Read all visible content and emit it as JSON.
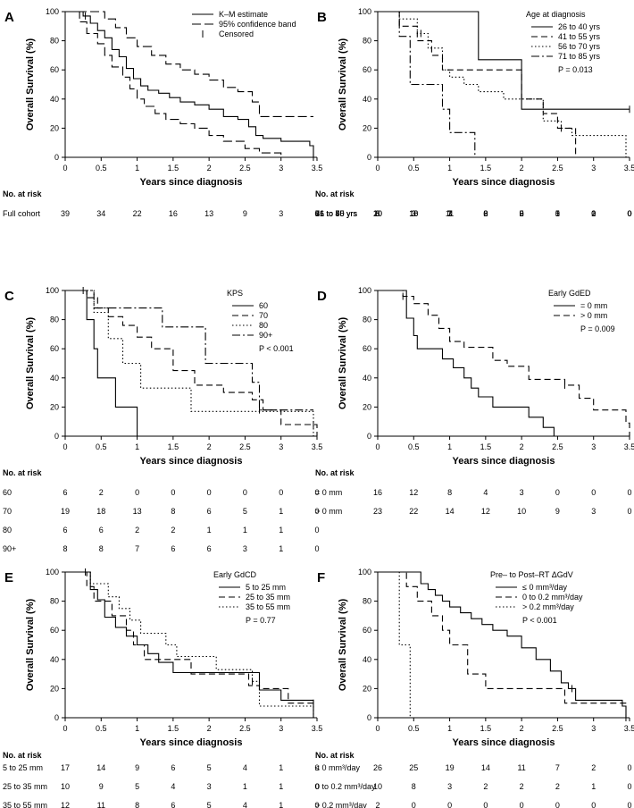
{
  "common": {
    "xlabel": "Years since diagnosis",
    "ylabel": "Overall Survival (%)",
    "x_ticks": [
      "0",
      "0.5",
      "1",
      "1.5",
      "2",
      "2.5",
      "3",
      "3.5"
    ],
    "y_ticks": [
      "0",
      "20",
      "40",
      "60",
      "80",
      "100"
    ],
    "risk_title": "No. at risk"
  },
  "chart_data": [
    {
      "panel": "A",
      "type": "line",
      "legend_title": "",
      "p_value": "",
      "xlim": [
        0,
        3.5
      ],
      "ylim": [
        0,
        100
      ],
      "legend": [
        "K–M estimate",
        "95% confidence band",
        "Censored"
      ],
      "series": [
        {
          "name": "K–M estimate",
          "style": "solid",
          "x": [
            0,
            0.25,
            0.35,
            0.45,
            0.55,
            0.65,
            0.75,
            0.85,
            0.95,
            1.05,
            1.15,
            1.3,
            1.45,
            1.6,
            1.8,
            2.0,
            2.2,
            2.4,
            2.55,
            2.65,
            2.75,
            3.0,
            3.4,
            3.45
          ],
          "y": [
            100,
            97,
            92,
            87,
            82,
            74,
            69,
            61,
            54,
            49,
            46,
            44,
            41,
            38,
            36,
            33,
            28,
            26,
            21,
            15,
            13,
            11,
            8,
            0
          ]
        },
        {
          "name": "95% confidence band upper",
          "style": "longdash",
          "x": [
            0,
            0.35,
            0.55,
            0.7,
            0.85,
            1.0,
            1.2,
            1.4,
            1.6,
            1.8,
            2.0,
            2.2,
            2.4,
            2.6,
            2.7,
            3.45
          ],
          "y": [
            100,
            100,
            95,
            89,
            82,
            76,
            70,
            64,
            60,
            57,
            53,
            48,
            45,
            38,
            28,
            28
          ]
        },
        {
          "name": "95% confidence band lower",
          "style": "longdash",
          "x": [
            0,
            0.2,
            0.3,
            0.45,
            0.55,
            0.65,
            0.8,
            0.9,
            1.0,
            1.1,
            1.25,
            1.4,
            1.6,
            1.8,
            2.0,
            2.2,
            2.5,
            2.7,
            3.0
          ],
          "y": [
            100,
            93,
            85,
            78,
            70,
            62,
            55,
            47,
            40,
            35,
            30,
            26,
            23,
            20,
            15,
            11,
            6,
            3,
            0
          ]
        }
      ],
      "censored": [
        {
          "series": 0,
          "x": [
            0.28,
            3.45
          ]
        }
      ],
      "risk": {
        "times": [
          "0",
          "0.5",
          "1",
          "1.5",
          "2",
          "2.5",
          "3",
          "3.5"
        ],
        "rows": [
          {
            "label": "Full cohort",
            "values": [
              "39",
              "34",
              "22",
              "16",
              "13",
              "9",
              "3",
              "0"
            ]
          }
        ]
      }
    },
    {
      "panel": "B",
      "type": "line",
      "legend_title": "Age at diagnosis",
      "p_value": "P = 0.013",
      "xlim": [
        0,
        3.5
      ],
      "ylim": [
        0,
        100
      ],
      "legend": [
        "26 to 40 yrs",
        "41 to 55 yrs",
        "56 to 70 yrs",
        "71 to 85 yrs"
      ],
      "series": [
        {
          "name": "26 to 40 yrs",
          "style": "solid",
          "x": [
            0,
            1.4,
            2.0,
            3.5
          ],
          "y": [
            100,
            67,
            33,
            33
          ]
        },
        {
          "name": "41 to 55 yrs",
          "style": "dash",
          "x": [
            0,
            0.3,
            0.55,
            0.75,
            0.9,
            1.0,
            1.4,
            2.0,
            2.3,
            2.5,
            2.75
          ],
          "y": [
            100,
            90,
            80,
            70,
            60,
            60,
            60,
            40,
            30,
            20,
            0
          ]
        },
        {
          "name": "56 to 70 yrs",
          "style": "dot",
          "x": [
            0,
            0.3,
            0.55,
            0.7,
            0.9,
            1.0,
            1.2,
            1.4,
            1.75,
            2.3,
            2.55,
            2.7,
            3.45
          ],
          "y": [
            100,
            95,
            85,
            75,
            60,
            55,
            50,
            45,
            40,
            25,
            20,
            15,
            0
          ]
        },
        {
          "name": "71 to 85 yrs",
          "style": "dashdot",
          "x": [
            0,
            0.3,
            0.45,
            0.7,
            0.9,
            1.0,
            1.35
          ],
          "y": [
            100,
            83,
            50,
            50,
            33,
            17,
            0
          ]
        }
      ],
      "censored": [
        {
          "series": 0,
          "x": [
            3.5
          ]
        },
        {
          "series": 2,
          "x": [
            0.6,
            2.55
          ]
        }
      ],
      "risk": {
        "times": [
          "0",
          "0.5",
          "1",
          "1.5",
          "2",
          "2.5",
          "3",
          "3.5"
        ],
        "rows": [
          {
            "label": "26 to 40 yrs",
            "values": [
              "3",
              "3",
              "3",
              "2",
              "2",
              "1",
              "1",
              "0"
            ]
          },
          {
            "label": "41 to 55 yrs",
            "values": [
              "10",
              "10",
              "7",
              "6",
              "6",
              "3",
              "0",
              "0"
            ]
          },
          {
            "label": "56 to 70 yrs",
            "values": [
              "20",
              "18",
              "11",
              "8",
              "5",
              "5",
              "2",
              "0"
            ]
          },
          {
            "label": "71 to 85 yrs",
            "values": [
              "6",
              "3",
              "1",
              "0",
              "0",
              "0",
              "0",
              "0"
            ]
          }
        ]
      }
    },
    {
      "panel": "C",
      "type": "line",
      "legend_title": "KPS",
      "p_value": "P < 0.001",
      "xlim": [
        0,
        3.5
      ],
      "ylim": [
        0,
        100
      ],
      "legend": [
        "60",
        "70",
        "80",
        "90+"
      ],
      "series": [
        {
          "name": "60",
          "style": "solid",
          "x": [
            0,
            0.3,
            0.4,
            0.45,
            0.7,
            1.0
          ],
          "y": [
            100,
            80,
            60,
            40,
            20,
            0
          ]
        },
        {
          "name": "70",
          "style": "dash",
          "x": [
            0,
            0.3,
            0.45,
            0.6,
            0.8,
            1.0,
            1.2,
            1.5,
            1.8,
            2.2,
            2.6,
            2.75,
            3.0,
            3.5
          ],
          "y": [
            100,
            95,
            88,
            82,
            76,
            68,
            60,
            45,
            35,
            30,
            25,
            18,
            8,
            0
          ]
        },
        {
          "name": "80",
          "style": "dot",
          "x": [
            0,
            0.4,
            0.6,
            0.8,
            0.9,
            1.05,
            1.6,
            1.75,
            2.6,
            3.45
          ],
          "y": [
            100,
            85,
            67,
            50,
            50,
            33,
            33,
            17,
            17,
            0
          ]
        },
        {
          "name": "90+",
          "style": "dashdot",
          "x": [
            0,
            0.4,
            0.65,
            1.35,
            1.95,
            2.6,
            2.7,
            3.45
          ],
          "y": [
            100,
            88,
            88,
            75,
            50,
            37,
            18,
            18
          ]
        }
      ],
      "censored": [
        {
          "series": 1,
          "x": [
            0.25,
            3.45
          ]
        },
        {
          "series": 3,
          "x": [
            2.7
          ]
        }
      ],
      "risk": {
        "times": [
          "0",
          "0.5",
          "1",
          "1.5",
          "2",
          "2.5",
          "3",
          "3.5"
        ],
        "rows": [
          {
            "label": "60",
            "values": [
              "6",
              "2",
              "0",
              "0",
              "0",
              "0",
              "0",
              "0"
            ]
          },
          {
            "label": "70",
            "values": [
              "19",
              "18",
              "13",
              "8",
              "6",
              "5",
              "1",
              "0"
            ]
          },
          {
            "label": "80",
            "values": [
              "6",
              "6",
              "2",
              "2",
              "1",
              "1",
              "1",
              "0"
            ]
          },
          {
            "label": "90+",
            "values": [
              "8",
              "8",
              "7",
              "6",
              "6",
              "3",
              "1",
              "0"
            ]
          }
        ]
      }
    },
    {
      "panel": "D",
      "type": "line",
      "legend_title": "Early GdED",
      "p_value": "P = 0.009",
      "xlim": [
        0,
        3.5
      ],
      "ylim": [
        0,
        100
      ],
      "legend": [
        "= 0 mm",
        "> 0 mm"
      ],
      "series": [
        {
          "name": "= 0 mm",
          "style": "solid",
          "x": [
            0,
            0.4,
            0.5,
            0.55,
            0.6,
            0.9,
            1.05,
            1.2,
            1.3,
            1.4,
            1.6,
            2.1,
            2.3,
            2.45
          ],
          "y": [
            100,
            81,
            69,
            60,
            60,
            53,
            47,
            40,
            33,
            27,
            20,
            13,
            6,
            0
          ]
        },
        {
          "name": "> 0 mm",
          "style": "dash",
          "x": [
            0,
            0.35,
            0.5,
            0.7,
            0.85,
            1.0,
            1.2,
            1.6,
            1.8,
            2.1,
            2.6,
            2.8,
            3.0,
            3.45,
            3.5
          ],
          "y": [
            100,
            96,
            91,
            83,
            74,
            65,
            61,
            52,
            48,
            39,
            35,
            26,
            18,
            9,
            0
          ]
        }
      ],
      "censored": [
        {
          "series": 1,
          "x": [
            0.35,
            2.6
          ]
        }
      ],
      "risk": {
        "times": [
          "0",
          "0.5",
          "1",
          "1.5",
          "2",
          "2.5",
          "3",
          "3.5"
        ],
        "rows": [
          {
            "label": "= 0 mm",
            "values": [
              "16",
              "12",
              "8",
              "4",
              "3",
              "0",
              "0",
              "0"
            ]
          },
          {
            "label": "> 0 mm",
            "values": [
              "23",
              "22",
              "14",
              "12",
              "10",
              "9",
              "3",
              "0"
            ]
          }
        ]
      }
    },
    {
      "panel": "E",
      "type": "line",
      "legend_title": "Early GdCD",
      "p_value": "P = 0.77",
      "xlim": [
        0,
        3.5
      ],
      "ylim": [
        0,
        100
      ],
      "legend": [
        "5 to 25 mm",
        "25 to 35 mm",
        "35 to 55 mm"
      ],
      "series": [
        {
          "name": "5 to 25 mm",
          "style": "solid",
          "x": [
            0,
            0.35,
            0.45,
            0.55,
            0.7,
            0.85,
            1.0,
            1.15,
            1.3,
            1.5,
            2.1,
            2.7,
            3.0,
            3.45
          ],
          "y": [
            100,
            88,
            81,
            69,
            62,
            56,
            50,
            44,
            38,
            31,
            31,
            19,
            12,
            0
          ]
        },
        {
          "name": "25 to 35 mm",
          "style": "dash",
          "x": [
            0,
            0.3,
            0.4,
            0.55,
            0.65,
            0.85,
            0.95,
            1.1,
            1.5,
            1.75,
            2.1,
            2.55,
            2.7,
            3.1,
            3.5
          ],
          "y": [
            100,
            90,
            80,
            80,
            70,
            60,
            50,
            40,
            40,
            30,
            30,
            22,
            20,
            10,
            10
          ]
        },
        {
          "name": "35 to 55 mm",
          "style": "dot",
          "x": [
            0,
            0.35,
            0.6,
            0.75,
            0.9,
            1.05,
            1.4,
            1.55,
            2.1,
            2.6,
            2.7,
            3.45
          ],
          "y": [
            100,
            92,
            83,
            75,
            67,
            58,
            50,
            42,
            33,
            25,
            8,
            0
          ]
        }
      ],
      "censored": [
        {
          "series": 0,
          "x": [
            0.28
          ]
        },
        {
          "series": 2,
          "x": [
            2.6
          ]
        },
        {
          "series": 1,
          "x": [
            3.45
          ]
        }
      ],
      "risk": {
        "times": [
          "0",
          "0.5",
          "1",
          "1.5",
          "2",
          "2.5",
          "3",
          "3.5"
        ],
        "rows": [
          {
            "label": "5 to 25 mm",
            "values": [
              "17",
              "14",
              "9",
              "6",
              "5",
              "4",
              "1",
              "0"
            ]
          },
          {
            "label": "25 to 35 mm",
            "values": [
              "10",
              "9",
              "5",
              "4",
              "3",
              "1",
              "1",
              "0"
            ]
          },
          {
            "label": "35 to 55 mm",
            "values": [
              "12",
              "11",
              "8",
              "6",
              "5",
              "4",
              "1",
              "0"
            ]
          }
        ]
      }
    },
    {
      "panel": "F",
      "type": "line",
      "legend_title": "Pre– to Post–RT ΔGdV",
      "p_value": "P < 0.001",
      "xlim": [
        0,
        3.5
      ],
      "ylim": [
        0,
        100
      ],
      "legend": [
        "≤ 0 mm³/day",
        "0 to 0.2 mm³/day",
        "> 0.2 mm³/day"
      ],
      "series": [
        {
          "name": "≤ 0 mm³/day",
          "style": "solid",
          "x": [
            0,
            0.6,
            0.7,
            0.8,
            0.9,
            1.0,
            1.15,
            1.3,
            1.45,
            1.6,
            1.8,
            2.0,
            2.2,
            2.4,
            2.55,
            2.65,
            2.75,
            3.4,
            3.45
          ],
          "y": [
            100,
            92,
            88,
            84,
            80,
            76,
            72,
            68,
            64,
            60,
            56,
            48,
            40,
            32,
            24,
            20,
            12,
            8,
            0
          ]
        },
        {
          "name": "0 to 0.2 mm³/day",
          "style": "dash",
          "x": [
            0,
            0.4,
            0.55,
            0.75,
            0.9,
            1.0,
            1.25,
            1.5,
            2.0,
            2.6,
            2.75,
            3.5
          ],
          "y": [
            100,
            90,
            80,
            70,
            60,
            50,
            30,
            20,
            20,
            10,
            10,
            10
          ]
        },
        {
          "name": "> 0.2 mm³/day",
          "style": "dot",
          "x": [
            0,
            0.3,
            0.45
          ],
          "y": [
            100,
            50,
            0
          ]
        }
      ],
      "censored": [
        {
          "series": 0,
          "x": [
            2.7,
            3.45
          ]
        }
      ],
      "risk": {
        "times": [
          "0",
          "0.5",
          "1",
          "1.5",
          "2",
          "2.5",
          "3",
          "3.5"
        ],
        "rows": [
          {
            "label": "≤ 0 mm³/day",
            "values": [
              "26",
              "25",
              "19",
              "14",
              "11",
              "7",
              "2",
              "0"
            ]
          },
          {
            "label": "0 to 0.2 mm³/day",
            "values": [
              "10",
              "8",
              "3",
              "2",
              "2",
              "2",
              "1",
              "0"
            ]
          },
          {
            "label": "> 0.2 mm³/day",
            "values": [
              "2",
              "0",
              "0",
              "0",
              "0",
              "0",
              "0",
              "0"
            ]
          }
        ]
      }
    }
  ]
}
